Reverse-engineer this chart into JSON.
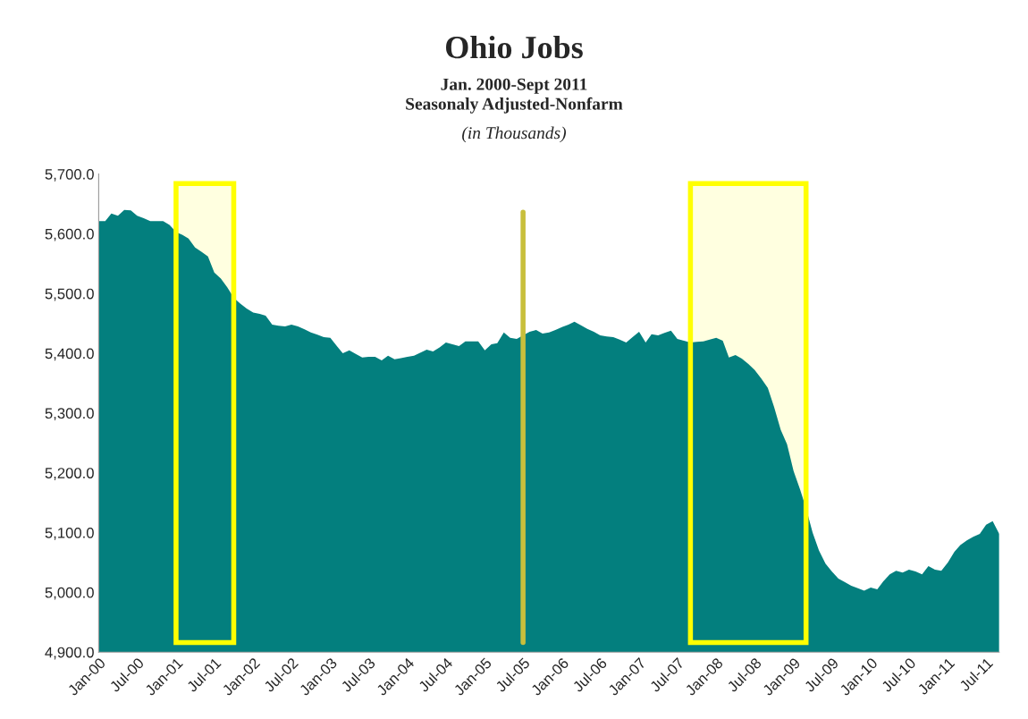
{
  "chart_data": {
    "type": "area",
    "title": "Ohio Jobs",
    "subtitle": "Jan. 2000-Sept 2011\nSeasonaly Adjusted-Nonfarm",
    "annotations": [
      "(in Thousands)"
    ],
    "x": [
      "2000-01",
      "2000-02",
      "2000-03",
      "2000-04",
      "2000-05",
      "2000-06",
      "2000-07",
      "2000-08",
      "2000-09",
      "2000-10",
      "2000-11",
      "2000-12",
      "2001-01",
      "2001-02",
      "2001-03",
      "2001-04",
      "2001-05",
      "2001-06",
      "2001-07",
      "2001-08",
      "2001-09",
      "2001-10",
      "2001-11",
      "2001-12",
      "2002-01",
      "2002-02",
      "2002-03",
      "2002-04",
      "2002-05",
      "2002-06",
      "2002-07",
      "2002-08",
      "2002-09",
      "2002-10",
      "2002-11",
      "2002-12",
      "2003-01",
      "2003-02",
      "2003-03",
      "2003-04",
      "2003-05",
      "2003-06",
      "2003-07",
      "2003-08",
      "2003-09",
      "2003-10",
      "2003-11",
      "2003-12",
      "2004-01",
      "2004-02",
      "2004-03",
      "2004-04",
      "2004-05",
      "2004-06",
      "2004-07",
      "2004-08",
      "2004-09",
      "2004-10",
      "2004-11",
      "2004-12",
      "2005-01",
      "2005-02",
      "2005-03",
      "2005-04",
      "2005-05",
      "2005-06",
      "2005-07",
      "2005-08",
      "2005-09",
      "2005-10",
      "2005-11",
      "2005-12",
      "2006-01",
      "2006-02",
      "2006-03",
      "2006-04",
      "2006-05",
      "2006-06",
      "2006-07",
      "2006-08",
      "2006-09",
      "2006-10",
      "2006-11",
      "2006-12",
      "2007-01",
      "2007-02",
      "2007-03",
      "2007-04",
      "2007-05",
      "2007-06",
      "2007-07",
      "2007-08",
      "2007-09",
      "2007-10",
      "2007-11",
      "2007-12",
      "2008-01",
      "2008-02",
      "2008-03",
      "2008-04",
      "2008-05",
      "2008-06",
      "2008-07",
      "2008-08",
      "2008-09",
      "2008-10",
      "2008-11",
      "2008-12",
      "2009-01",
      "2009-02",
      "2009-03",
      "2009-04",
      "2009-05",
      "2009-06",
      "2009-07",
      "2009-08",
      "2009-09",
      "2009-10",
      "2009-11",
      "2009-12",
      "2010-01",
      "2010-02",
      "2010-03",
      "2010-04",
      "2010-05",
      "2010-06",
      "2010-07",
      "2010-08",
      "2010-09",
      "2010-10",
      "2010-11",
      "2010-12",
      "2011-01",
      "2011-02",
      "2011-03",
      "2011-04",
      "2011-05",
      "2011-06",
      "2011-07",
      "2011-08",
      "2011-09"
    ],
    "series": [
      {
        "color": "#037f7e",
        "values": [
          5621,
          5621,
          5634,
          5630,
          5640,
          5639,
          5630,
          5626,
          5621,
          5621,
          5621,
          5615,
          5603,
          5598,
          5592,
          5577,
          5570,
          5562,
          5535,
          5525,
          5510,
          5493,
          5483,
          5475,
          5468,
          5466,
          5463,
          5448,
          5446,
          5445,
          5448,
          5445,
          5440,
          5435,
          5431,
          5427,
          5426,
          5412,
          5400,
          5405,
          5399,
          5393,
          5394,
          5394,
          5388,
          5396,
          5390,
          5392,
          5394,
          5396,
          5401,
          5406,
          5403,
          5410,
          5418,
          5415,
          5412,
          5420,
          5420,
          5420,
          5405,
          5415,
          5417,
          5435,
          5426,
          5424,
          5430,
          5436,
          5439,
          5433,
          5435,
          5439,
          5444,
          5448,
          5453,
          5447,
          5441,
          5436,
          5430,
          5428,
          5427,
          5423,
          5418,
          5427,
          5436,
          5418,
          5432,
          5430,
          5434,
          5438,
          5424,
          5421,
          5418,
          5419,
          5420,
          5423,
          5426,
          5421,
          5393,
          5397,
          5391,
          5382,
          5372,
          5358,
          5342,
          5310,
          5272,
          5248,
          5203,
          5172,
          5141,
          5100,
          5070,
          5048,
          5035,
          5023,
          5017,
          5011,
          5007,
          5003,
          5008,
          5005,
          5018,
          5030,
          5036,
          5033,
          5038,
          5035,
          5030,
          5044,
          5038,
          5036,
          5050,
          5068,
          5079,
          5087,
          5093,
          5098,
          5113,
          5119,
          5098
        ]
      }
    ],
    "xlim": [
      "2000-01",
      "2011-09"
    ],
    "xticks": [
      {
        "value": "2000-01",
        "label": "Jan-00"
      },
      {
        "value": "2000-07",
        "label": "Jul-00"
      },
      {
        "value": "2001-01",
        "label": "Jan-01"
      },
      {
        "value": "2001-07",
        "label": "Jul-01"
      },
      {
        "value": "2002-01",
        "label": "Jan-02"
      },
      {
        "value": "2002-07",
        "label": "Jul-02"
      },
      {
        "value": "2003-01",
        "label": "Jan-03"
      },
      {
        "value": "2003-07",
        "label": "Jul-03"
      },
      {
        "value": "2004-01",
        "label": "Jan-04"
      },
      {
        "value": "2004-07",
        "label": "Jul-04"
      },
      {
        "value": "2005-01",
        "label": "Jan-05"
      },
      {
        "value": "2005-07",
        "label": "Jul-05"
      },
      {
        "value": "2006-01",
        "label": "Jan-06"
      },
      {
        "value": "2006-07",
        "label": "Jul-06"
      },
      {
        "value": "2007-01",
        "label": "Jan-07"
      },
      {
        "value": "2007-07",
        "label": "Jul-07"
      },
      {
        "value": "2008-01",
        "label": "Jan-08"
      },
      {
        "value": "2008-07",
        "label": "Jul-08"
      },
      {
        "value": "2009-01",
        "label": "Jan-09"
      },
      {
        "value": "2009-07",
        "label": "Jul-09"
      },
      {
        "value": "2010-01",
        "label": "Jan-10"
      },
      {
        "value": "2010-07",
        "label": "Jul-10"
      },
      {
        "value": "2011-01",
        "label": "Jan-11"
      },
      {
        "value": "2011-07",
        "label": "Jul-11"
      }
    ],
    "ylim": [
      4900,
      5700
    ],
    "yticks": [
      {
        "value": 4900,
        "label": "4,900.0"
      },
      {
        "value": 5000,
        "label": "5,000.0"
      },
      {
        "value": 5100,
        "label": "5,100.0"
      },
      {
        "value": 5200,
        "label": "5,200.0"
      },
      {
        "value": 5300,
        "label": "5,300.0"
      },
      {
        "value": 5400,
        "label": "5,400.0"
      },
      {
        "value": 5500,
        "label": "5,500.0"
      },
      {
        "value": 5600,
        "label": "5,600.0"
      },
      {
        "value": 5700,
        "label": "5,700.0"
      }
    ],
    "bands": [
      {
        "axis": "x",
        "from": "2001-01",
        "to": "2001-10",
        "color": "#ffff00"
      },
      {
        "axis": "x",
        "from": "2007-09",
        "to": "2009-03",
        "color": "#ffff00"
      }
    ],
    "ref_lines": [
      {
        "axis": "x",
        "value": "2005-07",
        "color": "#c8bf3c"
      }
    ],
    "grid": false
  }
}
